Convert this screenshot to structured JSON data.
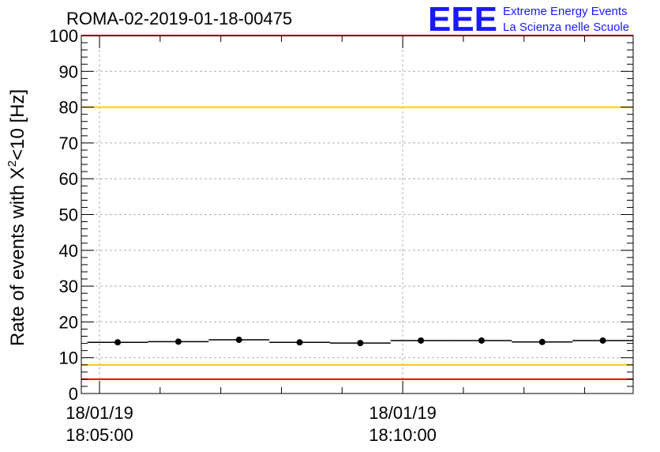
{
  "title": "ROMA-02-2019-01-18-00475",
  "logo": {
    "mark": "EEE",
    "line1": "Extreme Energy Events",
    "line2": "La Scienza nelle Scuole",
    "color": "#1a1aff"
  },
  "chart_data": {
    "type": "scatter",
    "title": "ROMA-02-2019-01-18-00475",
    "ylabel_main": "Rate of events with X",
    "ylabel_sup": "2",
    "ylabel_rest": "<10 [Hz]",
    "ylim": [
      0,
      100
    ],
    "yticks": [
      "0",
      "10",
      "20",
      "30",
      "40",
      "50",
      "60",
      "70",
      "80",
      "90",
      "100"
    ],
    "x_unit": "minutes after 18:00:00",
    "xlim": [
      4.7,
      13.8
    ],
    "xticks": [
      {
        "value": 5,
        "date": "18/01/19",
        "time": "18:05:00"
      },
      {
        "value": 10,
        "date": "18/01/19",
        "time": "18:10:00"
      }
    ],
    "grid": true,
    "x": [
      5.3,
      6.3,
      7.3,
      8.3,
      9.3,
      10.3,
      11.3,
      12.3,
      13.3
    ],
    "bin_halfwidth": 0.5,
    "y": [
      14.3,
      14.5,
      15.0,
      14.3,
      14.1,
      14.8,
      14.8,
      14.4,
      14.8
    ],
    "reference_lines": [
      {
        "y": 100,
        "color": "#ff0000"
      },
      {
        "y": 80,
        "color": "#ffcc00"
      },
      {
        "y": 8,
        "color": "#ffcc00"
      },
      {
        "y": 4,
        "color": "#ff0000"
      }
    ]
  }
}
